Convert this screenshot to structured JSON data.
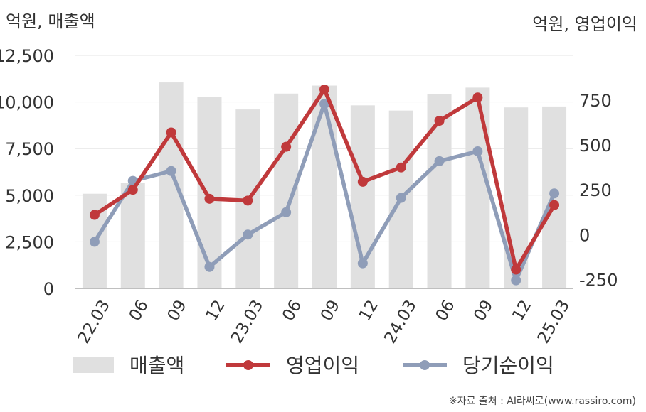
{
  "units": {
    "left": "억원, 매출액",
    "right": "억원, 영업이익"
  },
  "source": "※자료 출처 : AI라씨로(www.rassiro.com)",
  "chart_data": {
    "type": "bar",
    "categories": [
      "22.03",
      "06",
      "09",
      "12",
      "23.03",
      "06",
      "09",
      "12",
      "24.03",
      "06",
      "09",
      "12",
      "25.03"
    ],
    "series": [
      {
        "name": "매출액",
        "type": "bar",
        "axis": "left",
        "color": "#e0e0e0",
        "values": [
          5080,
          5660,
          11050,
          10280,
          9600,
          10450,
          10880,
          9820,
          9540,
          10430,
          10770,
          9710,
          9760
        ]
      },
      {
        "name": "영업이익",
        "type": "line",
        "axis": "right",
        "color": "#c0393b",
        "values": [
          110,
          250,
          570,
          200,
          190,
          490,
          810,
          295,
          375,
          635,
          765,
          -195,
          165
        ]
      },
      {
        "name": "당기순이익",
        "type": "line",
        "axis": "right",
        "color": "#8f9db8",
        "values": [
          -40,
          300,
          355,
          -180,
          0,
          125,
          730,
          -160,
          205,
          410,
          465,
          -255,
          230
        ]
      }
    ],
    "y_left": {
      "ticks": [
        "0",
        "2,500",
        "5,000",
        "7,500",
        "10,000",
        "12,500"
      ],
      "tick_values": [
        0,
        2500,
        5000,
        7500,
        10000,
        12500
      ],
      "range": [
        0,
        12500
      ]
    },
    "y_right": {
      "ticks": [
        "-250",
        "0",
        "250",
        "500",
        "750"
      ],
      "tick_values": [
        -250,
        0,
        250,
        500,
        750
      ],
      "range": [
        -300,
        1000
      ]
    },
    "grid": true,
    "legend": {
      "position": "bottom",
      "entries": [
        "매출액",
        "영업이익",
        "당기순이익"
      ]
    }
  }
}
